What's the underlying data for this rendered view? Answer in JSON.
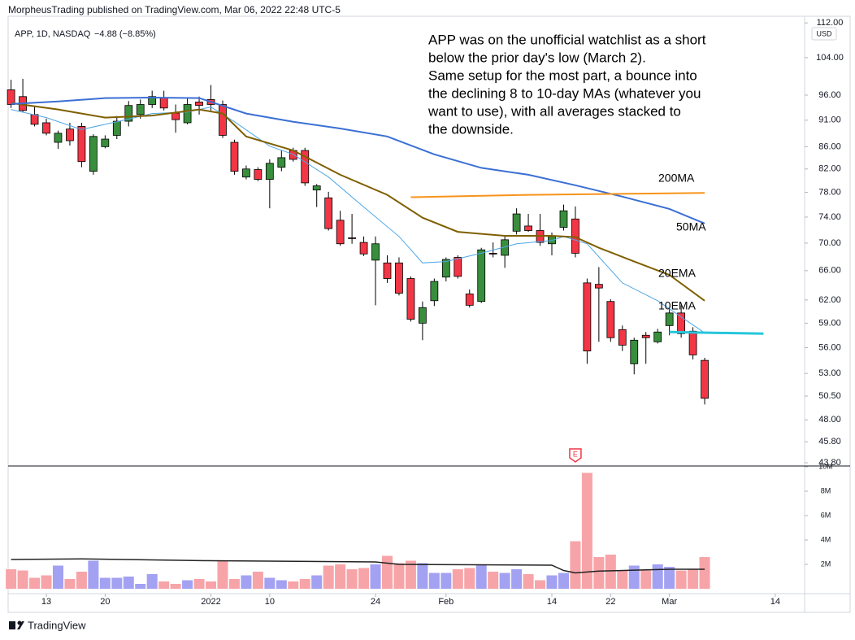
{
  "header": {
    "publisher": "MorpheusTrading published on TradingView.com, Mar 06, 2022 22:48 UTC-5"
  },
  "footer": {
    "brand": "TradingView"
  },
  "chart_data": [
    {
      "type": "candlestick",
      "title": "APP, 1D, NASDAQ",
      "change": "−4.88 (−8.85%)",
      "currency": "USD",
      "log_scale": true,
      "grid": false,
      "up_color": "#388e3c",
      "down_color": "#f23645",
      "open": [
        97.1,
        95.7,
        92.1,
        90.5,
        86.8,
        89.3,
        89.8,
        81.6,
        86,
        88.1,
        90.8,
        92.1,
        94.1,
        95.4,
        92.4,
        90.5,
        94.6,
        95.1,
        94.1,
        86.8,
        80.6,
        81.9,
        80.2,
        82.3,
        85.3,
        85.3,
        78.4,
        77.1,
        73.5,
        70.8,
        70.1,
        67.5,
        67.1,
        67.1,
        64.9,
        59,
        61.9,
        65.1,
        67.9,
        62.8,
        61.8,
        68.5,
        68.2,
        71.8,
        72.6,
        71.9,
        69.9,
        72.4,
        73.7,
        64.3,
        64.1,
        61.8,
        58.2,
        54.1,
        57.5,
        56.7,
        58.7,
        60.3,
        58.0,
        54.5
      ],
      "high": [
        99.2,
        99.4,
        93.6,
        91.3,
        89,
        90.5,
        90.5,
        88.3,
        88.1,
        91.8,
        94.8,
        95.1,
        96.9,
        96.9,
        94.1,
        95.4,
        95.7,
        98.1,
        94.9,
        87.3,
        82.6,
        82.3,
        83.7,
        85.3,
        85.8,
        85.8,
        79.4,
        78.1,
        75,
        74.5,
        71,
        71,
        68.2,
        67.9,
        65.2,
        61.8,
        64.9,
        67.9,
        68.2,
        63.4,
        69.3,
        70.1,
        71,
        75.4,
        74.5,
        74.5,
        71.6,
        76,
        75.7,
        64.9,
        66.5,
        62.1,
        58.7,
        57.2,
        57.9,
        58.3,
        60.8,
        61.3,
        58.5,
        54.8
      ],
      "low": [
        93.4,
        92.6,
        89.8,
        88.1,
        85.6,
        86.2,
        82.3,
        81.0,
        85.7,
        87.4,
        89.8,
        91.3,
        93.4,
        92.9,
        88.6,
        90.2,
        92.1,
        92.9,
        87.6,
        81.0,
        80.2,
        79.9,
        75.4,
        81.6,
        83.3,
        79.1,
        75.6,
        71.9,
        69.6,
        69.9,
        68.1,
        61.3,
        64.3,
        62.6,
        59.2,
        56.9,
        61.2,
        64.5,
        64.9,
        61,
        61.6,
        67.9,
        66.4,
        71.3,
        71.7,
        69.6,
        68.2,
        71.9,
        67.9,
        54.1,
        56.7,
        56.7,
        55.6,
        52.9,
        54.1,
        56.5,
        57.5,
        57.2,
        54.6,
        49.6
      ],
      "close": [
        94.1,
        92.9,
        90.2,
        88.5,
        88.5,
        87.1,
        83.3,
        87.9,
        87.4,
        90.8,
        93.9,
        94.1,
        95.7,
        93.4,
        91.1,
        94.1,
        93.9,
        94.1,
        88.1,
        81.6,
        82,
        80.2,
        83,
        84,
        83.7,
        79.6,
        79.1,
        72.2,
        69.9,
        70.7,
        68.4,
        69.9,
        64.9,
        62.9,
        59.5,
        61,
        64.5,
        67.6,
        65.2,
        61.3,
        69,
        68.4,
        70.5,
        74.5,
        71.9,
        70.1,
        71,
        75,
        68.5,
        55.6,
        63.6,
        57.2,
        56.3,
        56.9,
        57.2,
        57.9,
        60.3,
        57.7,
        55.14,
        50.26
      ],
      "lines": [
        {
          "name": "10EMA",
          "color": "#4ea6e6",
          "width": 1,
          "x": [
            0,
            3,
            6,
            9,
            12,
            15,
            17,
            19,
            22,
            24,
            27,
            30,
            33,
            35,
            37,
            40,
            43,
            46,
            47,
            49,
            52,
            55,
            57,
            59
          ],
          "values": [
            93.1,
            91.5,
            89.2,
            90.7,
            92.3,
            92.6,
            93.6,
            90.7,
            86.1,
            84.6,
            80.6,
            75.6,
            71.0,
            67.1,
            67.3,
            68.5,
            69.9,
            70.4,
            71.0,
            69.9,
            64.3,
            61.9,
            59.8,
            57.8
          ]
        },
        {
          "name": "20EMA",
          "color": "#7f5f00",
          "width": 2,
          "x": [
            0,
            4,
            8,
            12,
            16,
            18,
            20,
            24,
            28,
            32,
            35,
            38,
            42,
            46,
            48,
            50,
            53,
            56,
            59
          ],
          "values": [
            94.4,
            93.1,
            91.5,
            91.9,
            93.1,
            92.3,
            87.9,
            85.3,
            81.0,
            77.6,
            73.9,
            71.7,
            71.1,
            71.1,
            70.9,
            69.3,
            67.3,
            65.4,
            61.9
          ]
        },
        {
          "name": "50MA",
          "color": "#3b6fd4",
          "width": 2,
          "x": [
            0,
            4,
            8,
            12,
            16,
            20,
            24,
            28,
            32,
            36,
            40,
            44,
            48,
            52,
            56,
            59
          ],
          "values": [
            94.2,
            94.7,
            95.4,
            95.5,
            95.4,
            92.3,
            90.7,
            89.4,
            87.9,
            84.6,
            82.2,
            81.0,
            79.2,
            77.3,
            75.3,
            73.0
          ]
        },
        {
          "name": "200MA",
          "color": "#f7931a",
          "width": 2,
          "x": [
            34,
            44,
            59
          ],
          "values": [
            77.2,
            77.6,
            77.9
          ]
        },
        {
          "color": "#26c6da",
          "width": 3,
          "x": [
            56,
            64
          ],
          "values": [
            57.9,
            57.7
          ]
        }
      ],
      "annotation": [
        "APP was on the unofficial watchlist as a short",
        "below the prior day's low (March 2).",
        "Same setup for the most part, a bounce into",
        "the declining 8 to 10-day MAs (whatever you",
        "want to use), with all averages stacked to",
        "the downside."
      ],
      "earnings": {
        "label": "E",
        "x": 48
      },
      "xlim": [
        -0.25,
        67.5
      ],
      "xticks": [
        {
          "value": 3,
          "label": "13"
        },
        {
          "value": 8,
          "label": "20"
        },
        {
          "value": 17,
          "label": "2022"
        },
        {
          "value": 22,
          "label": "10"
        },
        {
          "value": 31,
          "label": "24"
        },
        {
          "value": 37,
          "label": "Feb"
        },
        {
          "value": 46,
          "label": "14"
        },
        {
          "value": 51,
          "label": "22"
        },
        {
          "value": 56,
          "label": "Mar"
        },
        {
          "value": 65,
          "label": "14"
        }
      ],
      "ylim": [
        43.5,
        113.6
      ],
      "yticks": [
        {
          "value": 112,
          "label": "112.00"
        },
        {
          "value": 104,
          "label": "104.00"
        },
        {
          "value": 96,
          "label": "96.00"
        },
        {
          "value": 91,
          "label": "91.00"
        },
        {
          "value": 86,
          "label": "86.00"
        },
        {
          "value": 82,
          "label": "82.00"
        },
        {
          "value": 78,
          "label": "78.00"
        },
        {
          "value": 74,
          "label": "74.00"
        },
        {
          "value": 70,
          "label": "70.00"
        },
        {
          "value": 66,
          "label": "66.00"
        },
        {
          "value": 62,
          "label": "62.00"
        },
        {
          "value": 59,
          "label": "59.00"
        },
        {
          "value": 56,
          "label": "56.00"
        },
        {
          "value": 53,
          "label": "53.00"
        },
        {
          "value": 50.5,
          "label": "50.50"
        },
        {
          "value": 48,
          "label": "48.00"
        },
        {
          "value": 45.8,
          "label": "45.80"
        },
        {
          "value": 43.8,
          "label": "43.80"
        }
      ]
    },
    {
      "type": "bar",
      "up_color": "#a3a1f2",
      "down_color": "#f7a4a8",
      "values": [
        1600000,
        1500000,
        900000,
        1100000,
        1900000,
        800000,
        1400000,
        2300000,
        900000,
        900000,
        1000000,
        400000,
        1200000,
        600000,
        400000,
        700000,
        800000,
        600000,
        2300000,
        800000,
        1100000,
        1400000,
        900000,
        700000,
        600000,
        800000,
        1100000,
        1900000,
        2000000,
        1600000,
        1700000,
        2000000,
        2700000,
        2100000,
        2300000,
        2100000,
        1300000,
        1300000,
        1600000,
        1700000,
        2000000,
        1400000,
        1300000,
        1600000,
        1200000,
        700000,
        1100000,
        1300000,
        3900000,
        9500000,
        2600000,
        2800000,
        1500000,
        1900000,
        1500000,
        2000000,
        1800000,
        1500000,
        1600000,
        2600000
      ],
      "ma": {
        "color": "#222222",
        "x": [
          0,
          6,
          17,
          31,
          33,
          46,
          47,
          48,
          50,
          56,
          59
        ],
        "values": [
          2400000,
          2450000,
          2300000,
          2200000,
          2000000,
          1930000,
          1500000,
          1300000,
          1450000,
          1600000,
          1600000
        ]
      },
      "ylim": [
        0,
        10000000
      ],
      "yticks": [
        {
          "value": 10000000,
          "label": "10M"
        },
        {
          "value": 8000000,
          "label": "8M"
        },
        {
          "value": 6000000,
          "label": "6M"
        },
        {
          "value": 4000000,
          "label": "4M"
        },
        {
          "value": 2000000,
          "label": "2M"
        }
      ]
    }
  ]
}
